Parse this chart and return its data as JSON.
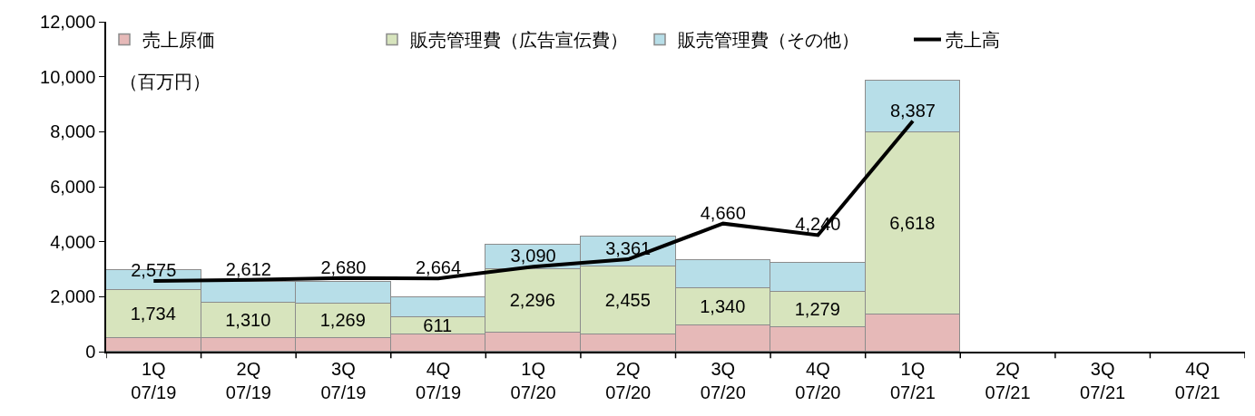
{
  "chart_data": {
    "type": "bar",
    "stacked": true,
    "ylabel": "（百万円）",
    "categories": [
      "1Q\n07/19",
      "2Q\n07/19",
      "3Q\n07/19",
      "4Q\n07/19",
      "1Q\n07/20",
      "2Q\n07/20",
      "3Q\n07/20",
      "4Q\n07/20",
      "1Q\n07/21",
      "2Q\n07/21",
      "3Q\n07/21",
      "4Q\n07/21"
    ],
    "series": [
      {
        "name": "売上原価",
        "color": "#e6b9b8",
        "values": [
          500,
          480,
          480,
          630,
          700,
          630,
          960,
          890,
          1350,
          null,
          null,
          null
        ]
      },
      {
        "name": "販売管理費（広告宣伝費）",
        "color": "#d7e4bd",
        "values": [
          1734,
          1310,
          1269,
          611,
          2296,
          2455,
          1340,
          1279,
          6618,
          null,
          null,
          null
        ],
        "value_labels": [
          "1,734",
          "1,310",
          "1,269",
          "611",
          "2,296",
          "2,455",
          "1,340",
          "1,279",
          "6,618",
          null,
          null,
          null
        ]
      },
      {
        "name": "販売管理費（その他）",
        "color": "#b7dee8",
        "values": [
          730,
          750,
          790,
          740,
          900,
          1100,
          1030,
          1060,
          1890,
          null,
          null,
          null
        ]
      },
      {
        "name": "売上高",
        "type": "line",
        "color": "#000000",
        "values": [
          2575,
          2612,
          2680,
          2664,
          3090,
          3361,
          4660,
          4240,
          8387,
          null,
          null,
          null
        ],
        "value_labels": [
          "2,575",
          "2,612",
          "2,680",
          "2,664",
          "3,090",
          "3,361",
          "4,660",
          "4,240",
          "8,387",
          null,
          null,
          null
        ]
      }
    ],
    "ylim": [
      0,
      12000
    ],
    "yticks": [
      0,
      {
        "value": 2000,
        "label": "2,000"
      },
      {
        "value": 4000,
        "label": "4,000"
      },
      {
        "value": 6000,
        "label": "6,000"
      },
      {
        "value": 8000,
        "label": "8,000"
      },
      {
        "value": 10000,
        "label": "10,000"
      },
      {
        "value": 12000,
        "label": "12,000"
      }
    ],
    "legend": "top",
    "marker": "none",
    "line_style": "solid"
  }
}
